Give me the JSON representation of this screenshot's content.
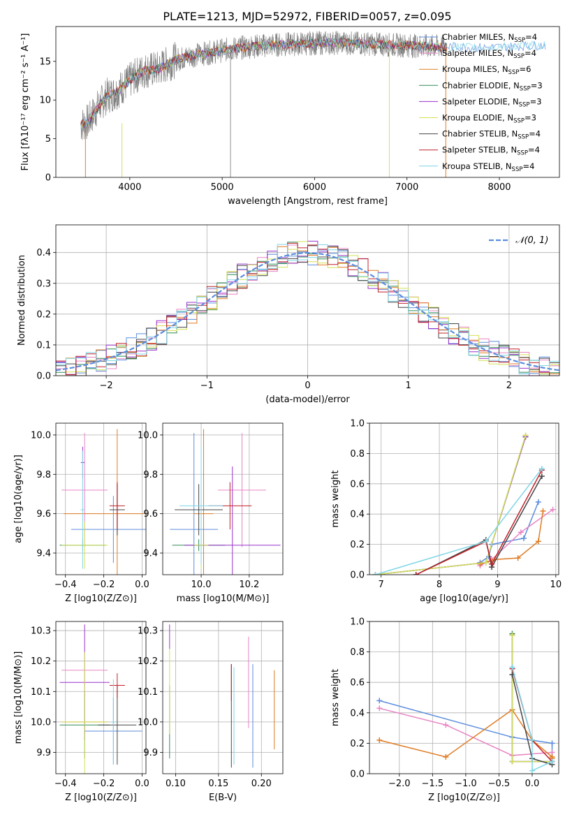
{
  "figure_title": "PLATE=1213, MJD=52972, FIBERID=0057, z=0.095",
  "models": [
    {
      "name": "Chabrier MILES",
      "nssp": "4",
      "color": "#5b8dde"
    },
    {
      "name": "Salpeter MILES",
      "nssp": "4",
      "color": "#e884c4"
    },
    {
      "name": "Kroupa MILES",
      "nssp": "6",
      "color": "#e07b22"
    },
    {
      "name": "Chabrier ELODIE",
      "nssp": "3",
      "color": "#2e8b57"
    },
    {
      "name": "Salpeter ELODIE",
      "nssp": "3",
      "color": "#9932cc"
    },
    {
      "name": "Kroupa ELODIE",
      "nssp": "3",
      "color": "#d4e157"
    },
    {
      "name": "Chabrier STELIB",
      "nssp": "4",
      "color": "#444444"
    },
    {
      "name": "Salpeter STELIB",
      "nssp": "4",
      "color": "#c0202a"
    },
    {
      "name": "Kroupa STELIB",
      "nssp": "4",
      "color": "#7fd6e6"
    }
  ],
  "chart_data": [
    {
      "id": "spectrum",
      "type": "line",
      "xlabel": "wavelength [Angstrom, rest frame]",
      "ylabel": "Flux [fλ10⁻¹⁷ erg cm⁻² s⁻¹ A⁻¹]",
      "xlim": [
        3200,
        8650
      ],
      "ylim": [
        0,
        19.5
      ],
      "xticks": [
        4000,
        5000,
        6000,
        7000,
        8000
      ],
      "yticks": [
        0,
        5,
        10,
        15
      ],
      "data_color": "#808080",
      "spikes": [
        {
          "x": 3520,
          "color": "#e07b22",
          "y0": 0,
          "y1": 7
        },
        {
          "x": 3915,
          "color": "#d4e157",
          "y0": 0,
          "y1": 7
        },
        {
          "x": 5090,
          "color": "#909090",
          "y0": 0,
          "y1": 17
        },
        {
          "x": 6810,
          "color": "#d4e157",
          "y0": 0,
          "y1": 17
        },
        {
          "x": 7420,
          "color": "#e07b22",
          "y0": 0,
          "y1": 17
        }
      ],
      "model_curve": {
        "x": [
          3470,
          3550,
          3650,
          3750,
          3850,
          3950,
          4050,
          4150,
          4300,
          4500,
          4700,
          4900,
          5100,
          5300,
          5500,
          5700,
          5900,
          6100,
          6300,
          6500,
          6700,
          6900,
          7100,
          7300,
          7500,
          7700,
          7900,
          8100,
          8300,
          8500
        ],
        "y": [
          6.8,
          7.2,
          9,
          10.5,
          11,
          12,
          13,
          13.8,
          14,
          15.2,
          15.8,
          16.2,
          16.6,
          16.9,
          17.1,
          17.2,
          17.3,
          17.4,
          17.4,
          17.3,
          17.2,
          17.1,
          17,
          16.9,
          16.9,
          16.8,
          16.8,
          16.9,
          17,
          17.1
        ]
      }
    },
    {
      "id": "residuals",
      "type": "step",
      "xlabel": "(data-model)/error",
      "ylabel": "Normed distribution",
      "xlim": [
        -2.5,
        2.5
      ],
      "ylim": [
        0,
        0.49
      ],
      "xticks": [
        -2,
        -1,
        0,
        1,
        2
      ],
      "yticks": [
        0.0,
        0.1,
        0.2,
        0.3,
        0.4
      ],
      "legend": "$\\mathcal{N}(0,1)$",
      "legend_loc": "upper right",
      "gaussian": {
        "mean": 0,
        "sigma": 1,
        "color": "#5b8dde"
      },
      "bin_width": 0.1
    },
    {
      "id": "z_age",
      "type": "errorbar",
      "xlabel": "Z [log10(Z/Z⊙)]",
      "ylabel": "age  [log10(age/yr)]",
      "xlim": [
        -0.45,
        0.02
      ],
      "ylim": [
        9.29,
        10.06
      ],
      "xticks": [
        -0.4,
        -0.2,
        0.0
      ],
      "yticks": [
        9.4,
        9.6,
        9.8,
        10.0
      ],
      "points": [
        {
          "x": -0.15,
          "y": 9.52,
          "xerr": 0.22,
          "yerr": 0.17,
          "c": 0
        },
        {
          "x": -0.3,
          "y": 9.72,
          "xerr": 0.12,
          "yerr": 0.29,
          "c": 1
        },
        {
          "x": -0.13,
          "y": 9.6,
          "xerr": 0.28,
          "yerr": 0.43,
          "c": 2
        },
        {
          "x": -0.31,
          "y": 9.44,
          "xerr": 0.12,
          "yerr": 0.03,
          "c": 3
        },
        {
          "x": -0.31,
          "y": 9.86,
          "xerr": 0.01,
          "yerr": 0.08,
          "c": 4
        },
        {
          "x": -0.3,
          "y": 9.44,
          "xerr": 0.12,
          "yerr": 0.12,
          "c": 5
        },
        {
          "x": -0.13,
          "y": 9.62,
          "xerr": 0.04,
          "yerr": 0.13,
          "c": 6
        },
        {
          "x": -0.13,
          "y": 9.64,
          "xerr": 0.04,
          "yerr": 0.12,
          "c": 7
        },
        {
          "x": -0.31,
          "y": 9.62,
          "xerr": 0.01,
          "yerr": 0.3,
          "c": 8
        }
      ]
    },
    {
      "id": "mass_age",
      "type": "errorbar",
      "xlabel": "mass [log10(M/M⊙)]",
      "ylabel": "",
      "xlim": [
        9.84,
        10.34
      ],
      "ylim": [
        9.29,
        10.06
      ],
      "xticks": [
        10.0,
        10.2
      ],
      "yticks": [
        9.4,
        9.6,
        9.8,
        10.0
      ],
      "points": [
        {
          "x": 9.97,
          "y": 9.52,
          "xerr": 0.1,
          "yerr": 0.49,
          "c": 0
        },
        {
          "x": 10.17,
          "y": 9.72,
          "xerr": 0.1,
          "yerr": 0.29,
          "c": 1
        },
        {
          "x": 10.01,
          "y": 9.6,
          "xerr": 0.04,
          "yerr": 0.43,
          "c": 2
        },
        {
          "x": 9.99,
          "y": 9.44,
          "xerr": 0.11,
          "yerr": 0.03,
          "c": 3
        },
        {
          "x": 10.13,
          "y": 9.44,
          "xerr": 0.2,
          "yerr": 0.4,
          "c": 4
        },
        {
          "x": 10.0,
          "y": 9.44,
          "xerr": 0.03,
          "yerr": 0.12,
          "c": 5
        },
        {
          "x": 9.99,
          "y": 9.62,
          "xerr": 0.1,
          "yerr": 0.13,
          "c": 6
        },
        {
          "x": 10.12,
          "y": 9.64,
          "xerr": 0.09,
          "yerr": 0.12,
          "c": 7
        },
        {
          "x": 10.0,
          "y": 9.64,
          "xerr": 0.09,
          "yerr": 0.3,
          "c": 8
        }
      ]
    },
    {
      "id": "age_massweight",
      "type": "line",
      "xlabel": "age  [log10(age/yr)]",
      "ylabel": "mass weight",
      "xlim": [
        6.8,
        10.05
      ],
      "ylim": [
        0,
        1
      ],
      "xticks": [
        7,
        8,
        9,
        10
      ],
      "yticks": [
        0.0,
        0.2,
        0.4,
        0.6,
        0.8,
        1.0
      ],
      "series": [
        {
          "c": 0,
          "x": [
            8.7,
            8.85,
            8.9,
            9.45,
            9.7
          ],
          "y": [
            0.08,
            0.12,
            0.2,
            0.24,
            0.48
          ]
        },
        {
          "c": 1,
          "x": [
            8.7,
            8.9,
            9.4,
            9.95
          ],
          "y": [
            0.06,
            0.1,
            0.28,
            0.43
          ]
        },
        {
          "c": 2,
          "x": [
            8.7,
            8.8,
            8.95,
            9.35,
            9.7,
            9.78
          ],
          "y": [
            0.07,
            0.08,
            0.1,
            0.11,
            0.22,
            0.42
          ]
        },
        {
          "c": 3,
          "x": [
            6.9,
            8.8,
            9.48
          ],
          "y": [
            0.0,
            0.08,
            0.91
          ]
        },
        {
          "c": 4,
          "x": [
            6.9,
            8.8,
            9.48
          ],
          "y": [
            0.0,
            0.08,
            0.91
          ]
        },
        {
          "c": 5,
          "x": [
            6.9,
            8.8,
            9.48
          ],
          "y": [
            0.0,
            0.08,
            0.92
          ]
        },
        {
          "c": 6,
          "x": [
            7.6,
            8.8,
            8.9,
            9.76
          ],
          "y": [
            0.0,
            0.23,
            0.05,
            0.65
          ]
        },
        {
          "c": 7,
          "x": [
            7.6,
            8.8,
            8.9,
            9.76
          ],
          "y": [
            0.0,
            0.22,
            0.07,
            0.69
          ]
        },
        {
          "c": 8,
          "x": [
            6.9,
            8.8,
            9.76
          ],
          "y": [
            0.0,
            0.22,
            0.7
          ]
        }
      ]
    },
    {
      "id": "z_mass",
      "type": "errorbar",
      "xlabel": "Z [log10(Z/Z⊙)]",
      "ylabel": "mass [log10(M/M⊙)]",
      "xlim": [
        -0.45,
        0.02
      ],
      "ylim": [
        9.83,
        10.33
      ],
      "xticks": [
        -0.4,
        -0.2,
        0.0
      ],
      "yticks": [
        9.9,
        10.0,
        10.1,
        10.2,
        10.3
      ],
      "points": [
        {
          "x": -0.15,
          "y": 9.97,
          "xerr": 0.15,
          "yerr": 0.11,
          "c": 0
        },
        {
          "x": -0.3,
          "y": 10.17,
          "xerr": 0.12,
          "yerr": 0.0,
          "c": 1
        },
        {
          "x": -0.3,
          "y": 10.0,
          "xerr": 0.12,
          "yerr": 0.0,
          "c": 2
        },
        {
          "x": -0.3,
          "y": 9.99,
          "xerr": 0.13,
          "yerr": 0.11,
          "c": 3
        },
        {
          "x": -0.3,
          "y": 10.13,
          "xerr": 0.13,
          "yerr": 0.19,
          "c": 4
        },
        {
          "x": -0.3,
          "y": 10.0,
          "xerr": 0.12,
          "yerr": 0.23,
          "c": 5
        },
        {
          "x": -0.13,
          "y": 9.99,
          "xerr": 0.1,
          "yerr": 0.13,
          "c": 6
        },
        {
          "x": -0.13,
          "y": 10.12,
          "xerr": 0.04,
          "yerr": 0.04,
          "c": 7
        },
        {
          "x": -0.15,
          "y": 10.0,
          "xerr": 0.01,
          "yerr": 0.14,
          "c": 8
        }
      ]
    },
    {
      "id": "ebv_mass",
      "type": "errorbar",
      "xlabel": "E(B-V)",
      "ylabel": "",
      "xlim": [
        0.085,
        0.225
      ],
      "ylim": [
        9.83,
        10.33
      ],
      "xticks": [
        0.1,
        0.15,
        0.2
      ],
      "yticks": [
        9.9,
        10.0,
        10.1,
        10.2,
        10.3
      ],
      "points": [
        {
          "x": 0.19,
          "y": 10.02,
          "xerr": 0.0,
          "yerr": 0.17,
          "c": 0
        },
        {
          "x": 0.185,
          "y": 10.13,
          "xerr": 0.0,
          "yerr": 0.15,
          "c": 1
        },
        {
          "x": 0.215,
          "y": 10.04,
          "xerr": 0.0,
          "yerr": 0.13,
          "c": 2
        },
        {
          "x": 0.093,
          "y": 10.0,
          "xerr": 0.0,
          "yerr": 0.12,
          "c": 3
        },
        {
          "x": 0.093,
          "y": 10.28,
          "xerr": 0.0,
          "yerr": 0.04,
          "c": 4
        },
        {
          "x": 0.093,
          "y": 10.1,
          "xerr": 0.0,
          "yerr": 0.14,
          "c": 5
        },
        {
          "x": 0.165,
          "y": 10.02,
          "xerr": 0.0,
          "yerr": 0.17,
          "c": 6
        },
        {
          "x": 0.165,
          "y": 10.13,
          "xerr": 0.0,
          "yerr": 0.06,
          "c": 7
        },
        {
          "x": 0.168,
          "y": 10.02,
          "xerr": 0.0,
          "yerr": 0.16,
          "c": 8
        }
      ]
    },
    {
      "id": "z_massweight",
      "type": "line",
      "xlabel": "Z [log10(Z/Z⊙)]",
      "ylabel": "mass weight",
      "xlim": [
        -2.45,
        0.4
      ],
      "ylim": [
        0,
        1
      ],
      "xticks": [
        -2.0,
        -1.5,
        -1.0,
        -0.5,
        0.0
      ],
      "yticks": [
        0.0,
        0.2,
        0.4,
        0.6,
        0.8,
        1.0
      ],
      "series": [
        {
          "c": 0,
          "x": [
            -2.3,
            -0.3,
            0.3,
            0.3
          ],
          "y": [
            0.48,
            0.24,
            0.2,
            0.08
          ]
        },
        {
          "c": 1,
          "x": [
            -2.3,
            -1.3,
            -0.3,
            0.3
          ],
          "y": [
            0.43,
            0.32,
            0.12,
            0.14
          ]
        },
        {
          "c": 2,
          "x": [
            -2.3,
            -1.3,
            -0.3,
            0.0,
            0.3,
            0.3
          ],
          "y": [
            0.22,
            0.11,
            0.42,
            0.22,
            0.11,
            0.1
          ]
        },
        {
          "c": 3,
          "x": [
            -0.3,
            -0.3,
            0.3
          ],
          "y": [
            0.92,
            0.08,
            0.08
          ]
        },
        {
          "c": 4,
          "x": [
            -0.3,
            -0.3,
            0.3
          ],
          "y": [
            0.91,
            0.08,
            0.08
          ]
        },
        {
          "c": 5,
          "x": [
            -0.3,
            -0.3,
            0.3
          ],
          "y": [
            0.91,
            0.08,
            0.08
          ]
        },
        {
          "c": 6,
          "x": [
            -0.3,
            0.0,
            0.3
          ],
          "y": [
            0.65,
            0.1,
            0.06
          ]
        },
        {
          "c": 7,
          "x": [
            -0.3,
            0.0,
            0.3
          ],
          "y": [
            0.69,
            0.22,
            0.08
          ]
        },
        {
          "c": 8,
          "x": [
            -0.3,
            0.0,
            0.0,
            0.3
          ],
          "y": [
            0.7,
            0.22,
            0.02,
            0.08
          ]
        }
      ]
    }
  ]
}
